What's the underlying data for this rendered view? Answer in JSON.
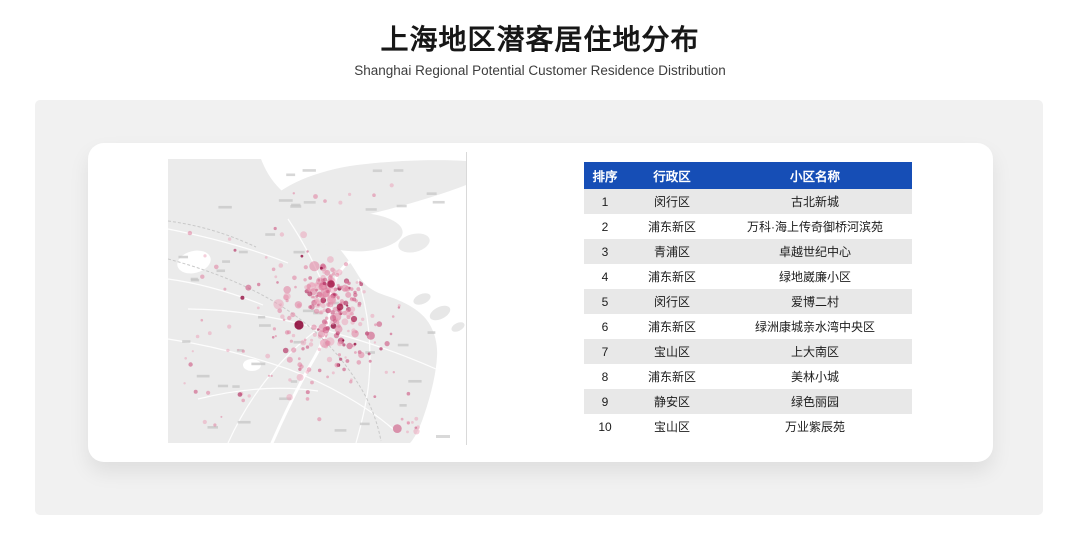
{
  "page": {
    "title": "上海地区潜客居住地分布",
    "subtitle": "Shanghai Regional Potential Customer Residence Distribution"
  },
  "colors": {
    "table_header_blue": "#164EB6",
    "table_stripe_gray": "#E8E8E8",
    "panel_background": "#F1F1F1",
    "card_background": "#FFFFFF",
    "map_land_gray": "#EBEBEB",
    "map_water_white": "#FFFFFF",
    "dot_pink": "#D4759D",
    "dot_deep_red": "#A3134E"
  },
  "map": {
    "description": "Grey basemap of Shanghai (mainland, Chongming, Changxing and Hengsha islands) with pink density dots marking potential-customer residences; the densest cluster covers the central urban districts, thinning toward the suburbs"
  },
  "chart_data": {
    "type": "table",
    "title": "上海地区潜客居住地分布",
    "subtitle": "Shanghai Regional Potential Customer Residence Distribution",
    "columns": [
      "排序",
      "行政区",
      "小区名称"
    ],
    "rows": [
      [
        "1",
        "闵行区",
        "古北新城"
      ],
      [
        "2",
        "浦东新区",
        "万科·海上传奇御桥河滨苑"
      ],
      [
        "3",
        "青浦区",
        "卓越世纪中心"
      ],
      [
        "4",
        "浦东新区",
        "绿地崴廉小区"
      ],
      [
        "5",
        "闵行区",
        "爱博二村"
      ],
      [
        "6",
        "浦东新区",
        "绿洲康城亲水湾中央区"
      ],
      [
        "7",
        "宝山区",
        "上大南区"
      ],
      [
        "8",
        "浦东新区",
        "美林小城"
      ],
      [
        "9",
        "静安区",
        "绿色丽园"
      ],
      [
        "10",
        "宝山区",
        "万业紫辰苑"
      ]
    ]
  }
}
